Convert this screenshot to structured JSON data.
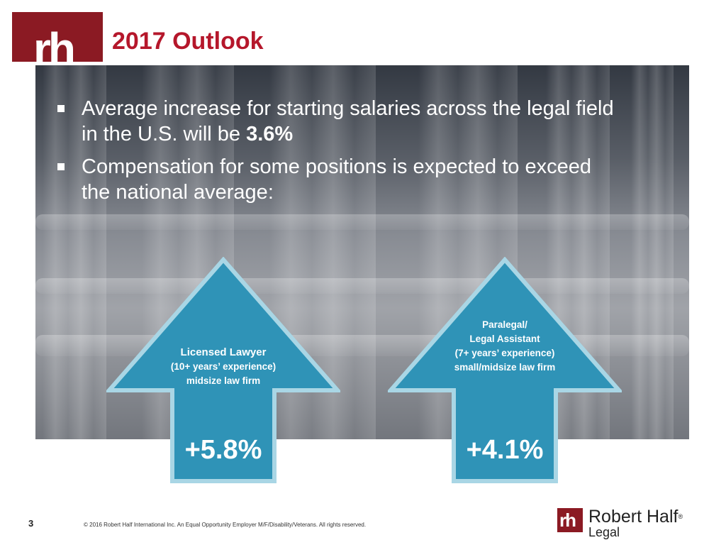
{
  "header": {
    "logo_text": "rh",
    "title": "2017 Outlook"
  },
  "bullets": [
    {
      "text": "Average increase for starting salaries across the legal field in the U.S. will be ",
      "bold": "3.6%"
    },
    {
      "text": "Compensation for some positions is expected to exceed the national average:",
      "bold": ""
    }
  ],
  "arrows": [
    {
      "lines": [
        "Licensed Lawyer",
        "(10+ years’ experience)",
        "midsize law firm"
      ],
      "value": "+5.8%"
    },
    {
      "lines": [
        "Paralegal/",
        "Legal Assistant",
        "(7+ years’ experience)",
        "small/midsize law firm"
      ],
      "value": "+4.1%"
    }
  ],
  "footer": {
    "page_number": "3",
    "copyright": "© 2016 Robert Half International Inc. An Equal Opportunity Employer M/F/Disability/Veterans. All rights reserved.",
    "logo_mark": "rh",
    "brand_name": "Robert Half",
    "brand_reg": "®",
    "brand_sub": "Legal"
  },
  "colors": {
    "brand_red": "#8b1a23",
    "title_red": "#b5172b",
    "arrow_fill": "#2f93b7",
    "arrow_border": "#a9d6e5"
  }
}
